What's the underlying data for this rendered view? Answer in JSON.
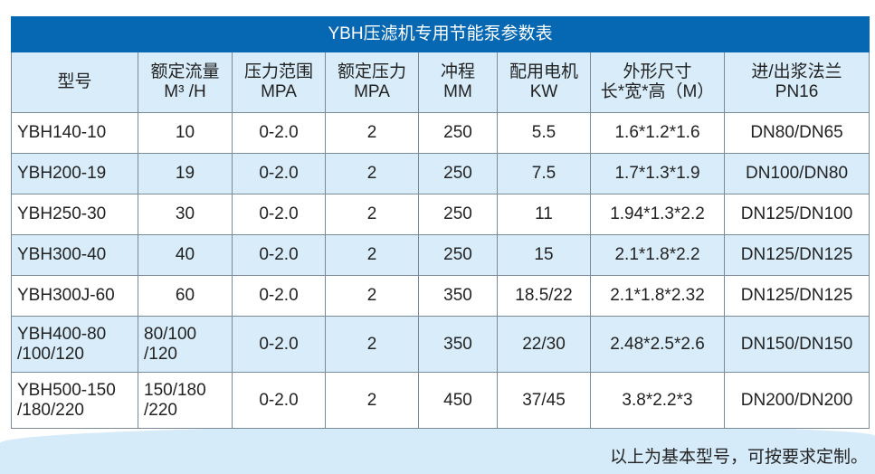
{
  "title": "YBH压滤机专用节能泵参数表",
  "headers": [
    {
      "l1": "型号",
      "l2": ""
    },
    {
      "l1": "额定流量",
      "l2": "M³ /H"
    },
    {
      "l1": "压力范围",
      "l2": "MPA"
    },
    {
      "l1": "额定压力",
      "l2": "MPA"
    },
    {
      "l1": "冲程",
      "l2": "MM"
    },
    {
      "l1": "配用电机",
      "l2": "KW"
    },
    {
      "l1": "外形尺寸",
      "l2": "长*宽*高（M）"
    },
    {
      "l1": "进/出浆法兰",
      "l2": "PN16"
    }
  ],
  "rows": [
    [
      "YBH140-10",
      "10",
      "0-2.0",
      "2",
      "250",
      "5.5",
      "1.6*1.2*1.6",
      "DN80/DN65"
    ],
    [
      "YBH200-19",
      "19",
      "0-2.0",
      "2",
      "250",
      "7.5",
      "1.7*1.3*1.9",
      "DN100/DN80"
    ],
    [
      "YBH250-30",
      "30",
      "0-2.0",
      "2",
      "250",
      "11",
      "1.94*1.3*2.2",
      "DN125/DN100"
    ],
    [
      "YBH300-40",
      "40",
      "0-2.0",
      "2",
      "250",
      "15",
      "2.1*1.8*2.2",
      "DN125/DN125"
    ],
    [
      "YBH300J-60",
      "60",
      "0-2.0",
      "2",
      "350",
      "18.5/22",
      "2.1*1.8*2.32",
      "DN125/DN125"
    ],
    [
      "YBH400-80\n/100/120",
      "80/100\n/120",
      "0-2.0",
      "2",
      "350",
      "22/30",
      "2.48*2.5*2.6",
      "DN150/DN150"
    ],
    [
      "YBH500-150\n/180/220",
      "150/180\n/220",
      "0-2.0",
      "2",
      "450",
      "37/45",
      "3.8*2.2*3",
      "DN200/DN200"
    ]
  ],
  "footer": "以上为基本型号，可按要求定制。",
  "colors": {
    "title_bar": "#0668b3",
    "row_alt": "#d8ecf9"
  }
}
